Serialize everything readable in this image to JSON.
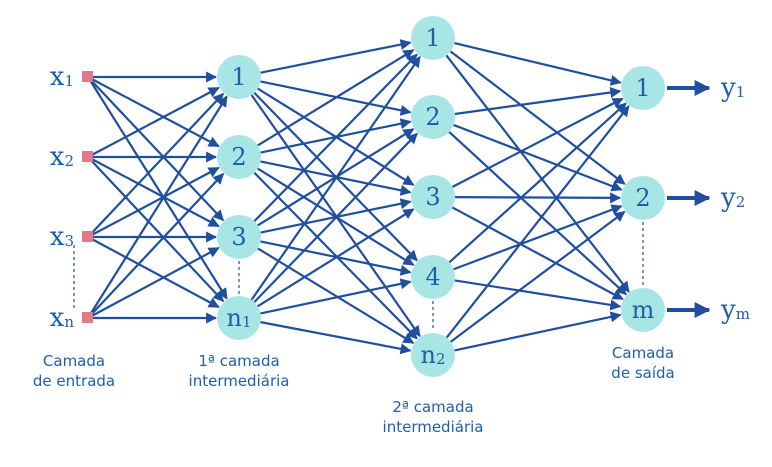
{
  "inputs": [
    {
      "main": "x",
      "sub": "1"
    },
    {
      "main": "x",
      "sub": "2"
    },
    {
      "main": "x",
      "sub": "3"
    },
    {
      "main": "x",
      "sub": "n"
    }
  ],
  "layer1": [
    {
      "main": "1",
      "sub": ""
    },
    {
      "main": "2",
      "sub": ""
    },
    {
      "main": "3",
      "sub": ""
    },
    {
      "main": "n",
      "sub": "1"
    }
  ],
  "layer2": [
    {
      "main": "1",
      "sub": ""
    },
    {
      "main": "2",
      "sub": ""
    },
    {
      "main": "3",
      "sub": ""
    },
    {
      "main": "4",
      "sub": ""
    },
    {
      "main": "n",
      "sub": "2"
    }
  ],
  "outputNodes": [
    {
      "main": "1",
      "sub": ""
    },
    {
      "main": "2",
      "sub": ""
    },
    {
      "main": "m",
      "sub": ""
    }
  ],
  "outputs": [
    {
      "main": "y",
      "sub": "1"
    },
    {
      "main": "y",
      "sub": "2"
    },
    {
      "main": "y",
      "sub": "m"
    }
  ],
  "captions": {
    "input": [
      "Camada",
      "de entrada"
    ],
    "hidden1": [
      "1ª camada",
      "intermediária"
    ],
    "hidden2": [
      "2ª camada",
      "intermediária"
    ],
    "output": [
      "Camada",
      "de saída"
    ]
  },
  "colors": {
    "edge": "#1f4f9e",
    "node_fill": "#a8e6e6",
    "input_marker": "#e07a8a",
    "text": "#1f5fa8"
  }
}
